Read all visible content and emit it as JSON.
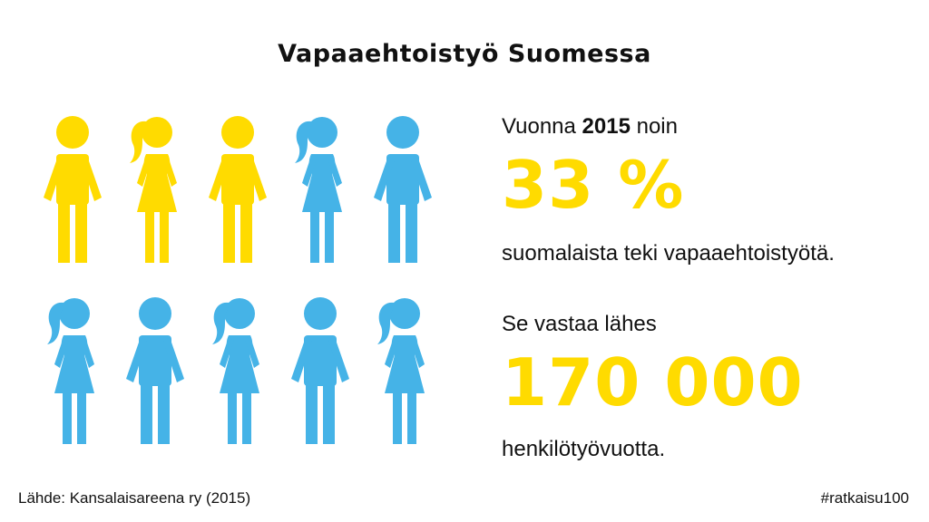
{
  "title": "Vapaaehtoistyö Suomessa",
  "colors": {
    "highlight": "#FFDB00",
    "other": "#45B3E7",
    "text": "#111111"
  },
  "figures": [
    {
      "gender": "male",
      "color": "highlight"
    },
    {
      "gender": "female",
      "color": "highlight"
    },
    {
      "gender": "male",
      "color": "highlight"
    },
    {
      "gender": "female",
      "color": "other"
    },
    {
      "gender": "male",
      "color": "other"
    },
    {
      "gender": "female",
      "color": "other"
    },
    {
      "gender": "male",
      "color": "other"
    },
    {
      "gender": "female",
      "color": "other"
    },
    {
      "gender": "male",
      "color": "other"
    },
    {
      "gender": "female",
      "color": "other"
    }
  ],
  "stat1": {
    "lead_prefix": "Vuonna",
    "lead_year": "2015",
    "lead_suffix": "noin",
    "value": "33 %",
    "caption": "suomalaista teki vapaaehtoistyötä."
  },
  "stat2": {
    "lead": "Se vastaa lähes",
    "value": "170 000",
    "caption": "henkilötyövuotta."
  },
  "footer": {
    "source": "Lähde: Kansalaisareena ry (2015)",
    "hashtag": "#ratkaisu100"
  }
}
